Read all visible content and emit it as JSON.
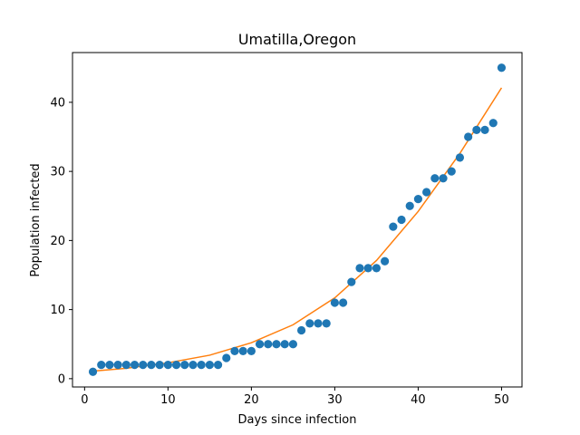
{
  "chart_data": {
    "type": "scatter",
    "title": "Umatilla,Oregon",
    "xlabel": "Days since infection",
    "ylabel": "Population infected",
    "xlim": [
      -1.45,
      52.45
    ],
    "ylim": [
      -1.2,
      47.2
    ],
    "xticks": [
      0,
      10,
      20,
      30,
      40,
      50
    ],
    "yticks": [
      0,
      10,
      20,
      30,
      40
    ],
    "grid": false,
    "colors": {
      "points": "#1f77b4",
      "fit": "#ff7f0e",
      "axes": "#000000"
    },
    "series": [
      {
        "kind": "scatter",
        "x": [
          1,
          2,
          3,
          4,
          5,
          6,
          7,
          8,
          9,
          10,
          11,
          12,
          13,
          14,
          15,
          16,
          17,
          18,
          19,
          20,
          21,
          22,
          23,
          24,
          25,
          26,
          27,
          28,
          29,
          30,
          31,
          32,
          33,
          34,
          35,
          36,
          37,
          38,
          39,
          40,
          41,
          42,
          43,
          44,
          45,
          46,
          47,
          48,
          49,
          50
        ],
        "y": [
          1,
          2,
          2,
          2,
          2,
          2,
          2,
          2,
          2,
          2,
          2,
          2,
          2,
          2,
          2,
          2,
          3,
          4,
          4,
          4,
          5,
          5,
          5,
          5,
          5,
          7,
          8,
          8,
          8,
          11,
          11,
          14,
          16,
          16,
          16,
          17,
          22,
          23,
          25,
          26,
          27,
          29,
          29,
          30,
          32,
          35,
          36,
          36,
          37,
          45
        ]
      },
      {
        "kind": "line",
        "x": [
          1,
          5,
          10,
          15,
          20,
          25,
          30,
          35,
          40,
          45,
          50
        ],
        "y": [
          1.1,
          1.5,
          2.3,
          3.4,
          5.2,
          7.8,
          11.7,
          17.1,
          24.2,
          32.6,
          42.1
        ]
      }
    ]
  }
}
